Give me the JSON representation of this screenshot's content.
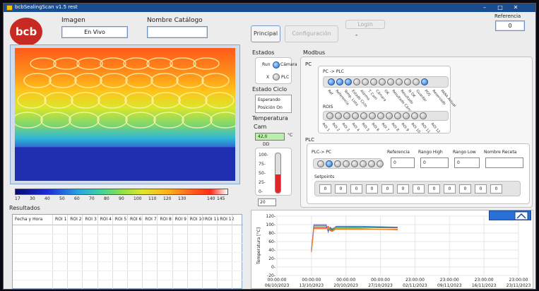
{
  "window": {
    "title": "bcbSealingScan v1.5 rest"
  },
  "header": {
    "imagen_label": "Imagen",
    "imagen_value": "En Vivo",
    "catalogo_label": "Nombre Catálogo",
    "catalogo_value": "",
    "referencia_label": "Referencia",
    "referencia_value": "0",
    "login_label": "Login",
    "login_sub": "-"
  },
  "tabs": [
    {
      "label": "Principal"
    },
    {
      "label": "Configuración"
    }
  ],
  "colorbar": {
    "ticks": [
      "17",
      "30",
      "40",
      "50",
      "60",
      "70",
      "80",
      "90",
      "100",
      "110",
      "120",
      "130",
      "140",
      "145"
    ]
  },
  "resultados": {
    "title": "Resultados",
    "columns": [
      "Fecha y Hora",
      "ROI 1",
      "ROI 2",
      "ROI 3",
      "ROI 4",
      "ROI 5",
      "ROI 6",
      "ROI 7",
      "ROI 8",
      "ROI 9",
      "ROI 10",
      "ROI 11",
      "ROI 12"
    ]
  },
  "estados": {
    "title": "Estados",
    "run_label": "Run",
    "camara_label": "Cámara",
    "x_label": "X",
    "plc_label": "PLC"
  },
  "estado_ciclo": {
    "title": "Estado Ciclo",
    "line1": "Esperando",
    "line2": "Posición On"
  },
  "temperatura": {
    "title1": "Temperatura",
    "title2": "Cam",
    "value": "42,0",
    "unit": "°C",
    "dd_label": "DD",
    "gauge_ticks": [
      "100-",
      "75-",
      "50-",
      "25-",
      "0-"
    ],
    "gauge_level": 0.45,
    "bottom_value": "20"
  },
  "modbus": {
    "title": "Modbus",
    "pc_label": "PC",
    "pc_plc_label": "PC -> PLC",
    "pc_leds_on": [
      true,
      true,
      true,
      false,
      false,
      false,
      false,
      false,
      false,
      false,
      false,
      true
    ],
    "pc_led_labels": [
      "Ref",
      "Referencia",
      "Temp. Lista",
      "Estado Ciclo",
      "Alarma",
      "T. Cam",
      "Cámara",
      "OK",
      "Resultado Cámara",
      "Resultado",
      "N OK",
      "Guardar",
      "POS",
      "Reservado",
      "PARA Actual"
    ],
    "rois_label": "ROIS",
    "roi_leds": 12,
    "roi_labels": [
      "ROI 1",
      "ROI 2",
      "ROI 3",
      "ROI 4",
      "ROI 5",
      "ROI 6",
      "ROI 7",
      "ROI 8",
      "ROI 9",
      "ROI 10",
      "ROI 11",
      "ROI 12"
    ],
    "plc_label": "PLC",
    "plc_pc_label": "PLC-> PC",
    "plc_leds_on": [
      false,
      true,
      false,
      false,
      false,
      false,
      false,
      false
    ],
    "referencia_label": "Referencia",
    "referencia_value": "0",
    "rango_high_label": "Rango High",
    "rango_high_value": "0",
    "rango_low_label": "Rango Low",
    "rango_low_value": "0",
    "nombre_receta_label": "Nombre Receta",
    "nombre_receta_value": "",
    "setpoints_label": "Setpoints",
    "setpoints": [
      "0",
      "0",
      "0",
      "0",
      "0",
      "0",
      "0",
      "0",
      "0",
      "0",
      "0",
      "0"
    ]
  },
  "chart_data": {
    "type": "line",
    "ylabel": "Temperatura [°C]",
    "xlabel": "",
    "ylim": [
      -20,
      120
    ],
    "y_ticks": [
      "120-",
      "100-",
      "80-",
      "60-",
      "40-",
      "20-",
      "0-",
      "-20-"
    ],
    "x_ticks": [
      {
        "time": "00:00:00",
        "date": "06/10/2023"
      },
      {
        "time": "00:00:00",
        "date": "13/10/2023"
      },
      {
        "time": "00:00:00",
        "date": "20/10/2023"
      },
      {
        "time": "00:00:00",
        "date": "27/10/2023"
      },
      {
        "time": "23:00:00",
        "date": "02/11/2023"
      },
      {
        "time": "23:00:00",
        "date": "09/11/2023"
      },
      {
        "time": "23:00:00",
        "date": "16/11/2023"
      },
      {
        "time": "23:00:00",
        "date": "23/11/2023"
      }
    ],
    "grid": true,
    "series_colors": [
      "#1f77b4",
      "#2ca02c",
      "#d62728",
      "#9467bd",
      "#ff7f0e",
      "#17becf"
    ],
    "series": [
      {
        "values": [
          [
            0.0,
            35
          ],
          [
            0.5,
            98
          ],
          [
            3.0,
            98
          ],
          [
            3.4,
            85
          ],
          [
            3.8,
            92
          ],
          [
            4.2,
            88
          ],
          [
            5.0,
            96
          ],
          [
            10.0,
            96
          ],
          [
            17.5,
            94
          ]
        ]
      },
      {
        "values": [
          [
            0.0,
            40
          ],
          [
            0.5,
            95
          ],
          [
            3.0,
            95
          ],
          [
            3.4,
            88
          ],
          [
            3.8,
            90
          ],
          [
            4.2,
            86
          ],
          [
            5.0,
            93
          ],
          [
            10.0,
            93
          ],
          [
            17.5,
            92
          ]
        ]
      },
      {
        "values": [
          [
            0.0,
            38
          ],
          [
            0.5,
            92
          ],
          [
            3.0,
            92
          ],
          [
            3.4,
            96
          ],
          [
            3.8,
            86
          ],
          [
            4.2,
            84
          ],
          [
            5.0,
            90
          ],
          [
            10.0,
            90
          ],
          [
            17.5,
            88
          ]
        ]
      },
      {
        "values": [
          [
            0.0,
            42
          ],
          [
            0.5,
            100
          ],
          [
            3.0,
            100
          ],
          [
            3.4,
            82
          ],
          [
            3.8,
            94
          ],
          [
            4.2,
            90
          ],
          [
            5.0,
            95
          ],
          [
            10.0,
            94
          ],
          [
            17.5,
            93
          ]
        ]
      },
      {
        "values": [
          [
            0.0,
            36
          ],
          [
            0.5,
            90
          ],
          [
            3.0,
            90
          ],
          [
            3.4,
            92
          ],
          [
            3.8,
            88
          ],
          [
            4.2,
            85
          ],
          [
            5.0,
            89
          ],
          [
            10.0,
            89
          ],
          [
            17.5,
            89
          ]
        ]
      }
    ]
  }
}
